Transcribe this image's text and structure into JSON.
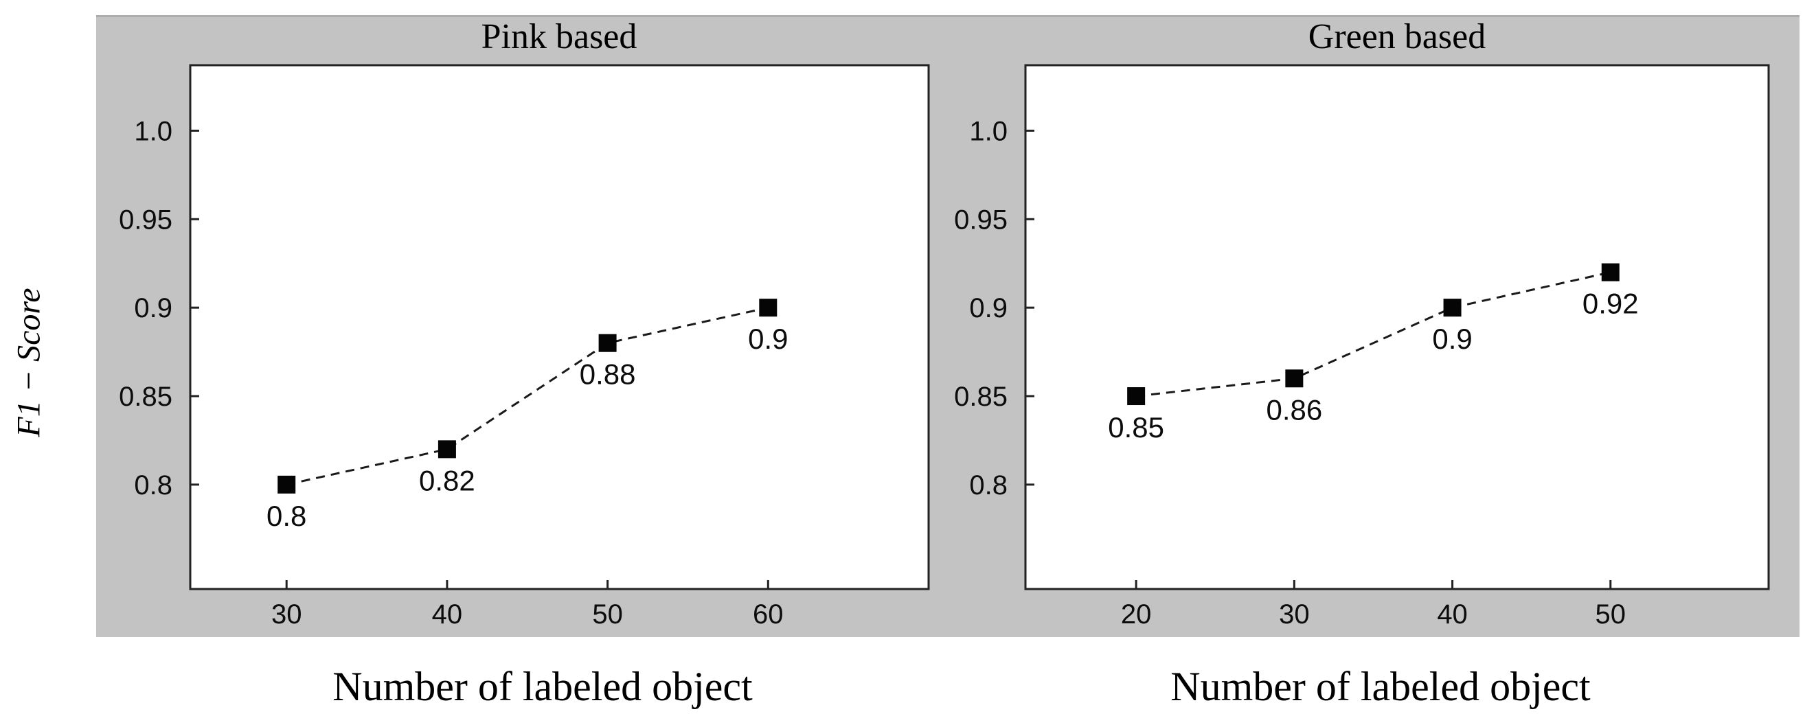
{
  "figure": {
    "ylabel": "F1 − Score",
    "panel_color": "#c3c3c3",
    "plot_background": "#ffffff",
    "axis_color": "#222222",
    "line_color": "#1a1a1a",
    "marker_color": "#050505",
    "text_color": "#000000"
  },
  "chart_data": [
    {
      "type": "line",
      "title": "Pink based",
      "xlabel": "Number of labeled object",
      "ylabel": "F1 − Score",
      "x": [
        30,
        40,
        50,
        60
      ],
      "y": [
        0.8,
        0.82,
        0.88,
        0.9
      ],
      "point_labels": [
        "0.8",
        "0.82",
        "0.88",
        "0.9"
      ],
      "xticks": [
        30,
        40,
        50,
        60
      ],
      "xtick_labels": [
        "30",
        "40",
        "50",
        "60"
      ],
      "yticks": [
        1.0,
        0.95,
        0.9,
        0.85,
        0.8
      ],
      "ytick_labels": [
        "1.0",
        "0.95",
        "0.9",
        "0.85",
        "0.8"
      ],
      "xlim": [
        24,
        70
      ],
      "ylim": [
        0.741,
        1.037
      ],
      "line_style": "dashed",
      "marker": "square",
      "grid": false,
      "legend": null
    },
    {
      "type": "line",
      "title": "Green based",
      "xlabel": "Number of labeled object",
      "ylabel": "F1 − Score",
      "x": [
        20,
        30,
        40,
        50
      ],
      "y": [
        0.85,
        0.86,
        0.9,
        0.92
      ],
      "point_labels": [
        "0.85",
        "0.86",
        "0.9",
        "0.92"
      ],
      "xticks": [
        20,
        30,
        40,
        50
      ],
      "xtick_labels": [
        "20",
        "30",
        "40",
        "50"
      ],
      "yticks": [
        1.0,
        0.95,
        0.9,
        0.85,
        0.8
      ],
      "ytick_labels": [
        "1.0",
        "0.95",
        "0.9",
        "0.85",
        "0.8"
      ],
      "xlim": [
        13,
        60
      ],
      "ylim": [
        0.741,
        1.037
      ],
      "line_style": "dashed",
      "marker": "square",
      "grid": false,
      "legend": null
    }
  ]
}
